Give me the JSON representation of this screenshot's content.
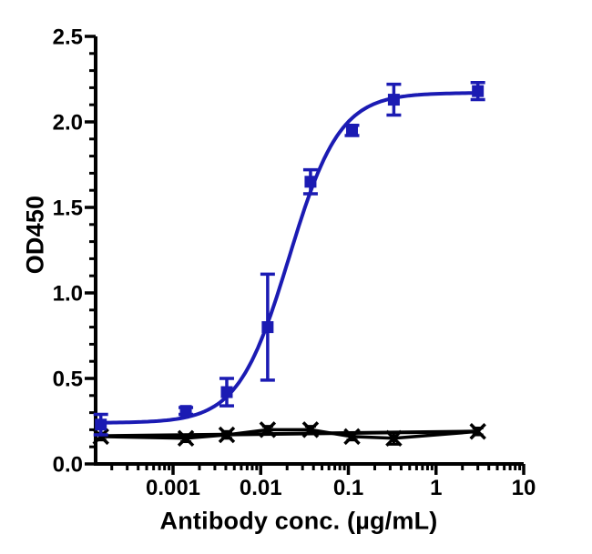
{
  "figure": {
    "background": "#ffffff",
    "axis_color": "#000000",
    "y_axis": {
      "title": "OD450",
      "min": 0.0,
      "max": 2.5,
      "major_step": 0.5,
      "minor_step": 0.1,
      "tick_values": [
        0.0,
        0.5,
        1.0,
        1.5,
        2.0,
        2.5
      ],
      "tick_labels": [
        "0.0",
        "0.5",
        "1.0",
        "1.5",
        "2.0",
        "2.5"
      ]
    },
    "x_axis": {
      "title": "Antibody conc. (µg/mL)",
      "scale": "log10",
      "min": 0.00013,
      "max": 10,
      "decade_values": [
        0.001,
        0.01,
        0.1,
        1,
        10
      ],
      "decade_labels": [
        "0.001",
        "0.01",
        "0.1",
        "1",
        "10"
      ]
    }
  },
  "chart_data": {
    "type": "line",
    "title": "",
    "xlabel": "Antibody conc. (µg/mL)",
    "ylabel": "OD450",
    "x_scale": "log10",
    "xlim": [
      0.00013,
      10
    ],
    "ylim": [
      0,
      2.5
    ],
    "grid": false,
    "legend": "none",
    "x": [
      0.00015,
      0.0014,
      0.0041,
      0.012,
      0.037,
      0.11,
      0.33,
      3
    ],
    "series": [
      {
        "name": "blue-squares-binding",
        "color": "#1b1bb3",
        "marker": "square",
        "values": [
          0.23,
          0.31,
          0.42,
          0.8,
          1.65,
          1.95,
          2.13,
          2.18
        ],
        "errors": [
          0.06,
          0.02,
          0.08,
          0.31,
          0.07,
          0.03,
          0.09,
          0.05
        ],
        "fit": {
          "type": "4PL",
          "bottom": 0.24,
          "top": 2.17,
          "ec50": 0.021,
          "hill": 1.5
        }
      },
      {
        "name": "black-x-control",
        "color": "#000000",
        "marker": "x",
        "values": [
          0.16,
          0.15,
          0.17,
          0.2,
          0.2,
          0.16,
          0.15,
          0.19
        ],
        "errors": [
          0.02,
          0.02,
          0.02,
          0.02,
          0.02,
          0.02,
          0.035,
          0.02
        ],
        "fit": {
          "type": "linear",
          "y_start": 0.163,
          "y_end": 0.19
        }
      }
    ]
  }
}
